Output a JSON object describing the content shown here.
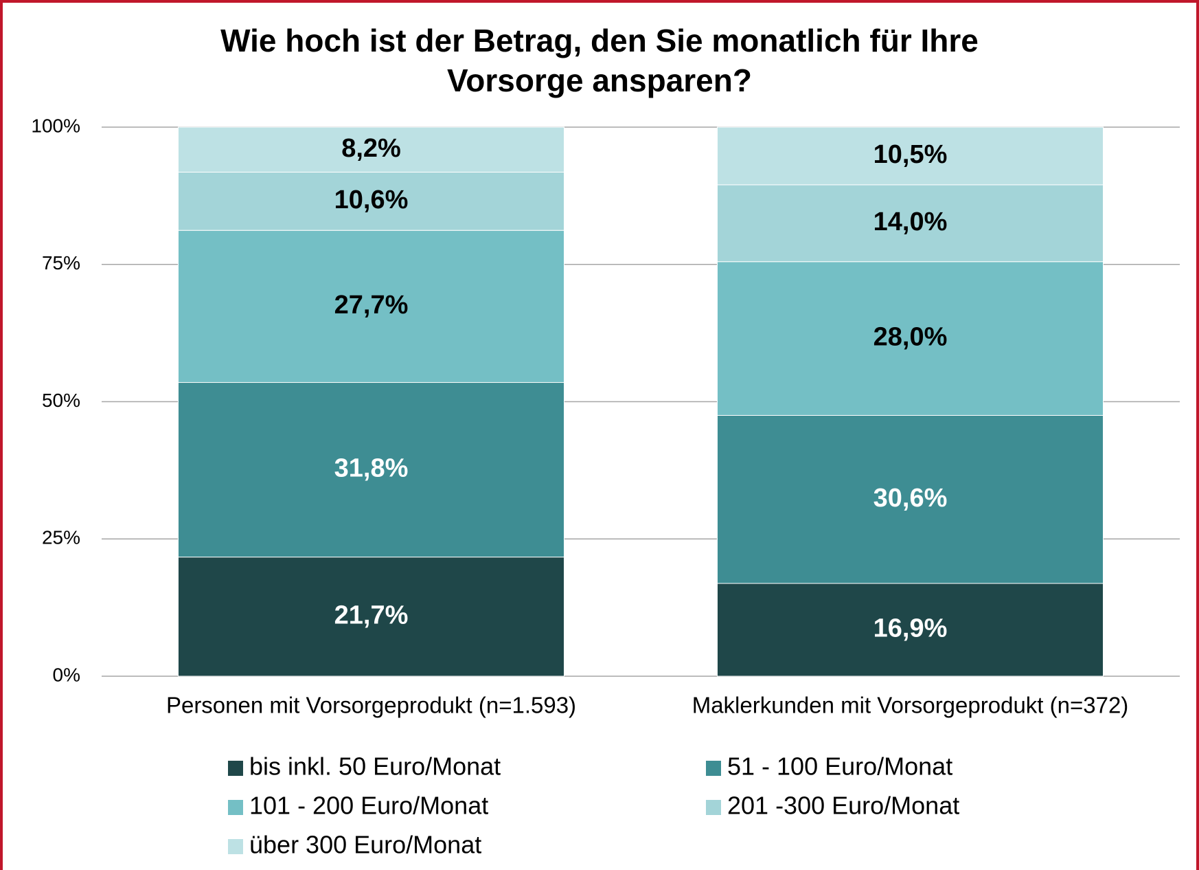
{
  "chart_data": {
    "type": "stacked_bar",
    "title": "Wie hoch ist der Betrag, den Sie monatlich für Ihre Vorsorge ansparen?",
    "categories": [
      "Personen mit Vorsorgeprodukt (n=1.593)",
      "Maklerkunden mit Vorsorgeprodukt (n=372)"
    ],
    "series": [
      {
        "name": "bis inkl. 50 Euro/Monat",
        "color": "#1f4749",
        "label_color": "#ffffff",
        "values": [
          21.7,
          16.9
        ],
        "value_labels": [
          "21,7%",
          "16,9%"
        ]
      },
      {
        "name": "51 - 100 Euro/Monat",
        "color": "#3e8d93",
        "label_color": "#ffffff",
        "values": [
          31.8,
          30.6
        ],
        "value_labels": [
          "31,8%",
          "30,6%"
        ]
      },
      {
        "name": "101 - 200 Euro/Monat",
        "color": "#74bfc5",
        "label_color": "#000000",
        "values": [
          27.7,
          28.0
        ],
        "value_labels": [
          "27,7%",
          "28,0%"
        ]
      },
      {
        "name": "201 -300 Euro/Monat",
        "color": "#a3d4d8",
        "label_color": "#000000",
        "values": [
          10.6,
          14.0
        ],
        "value_labels": [
          "10,6%",
          "14,0%"
        ]
      },
      {
        "name": "über 300 Euro/Monat",
        "color": "#bde1e4",
        "label_color": "#000000",
        "values": [
          8.2,
          10.5
        ],
        "value_labels": [
          "8,2%",
          "10,5%"
        ]
      }
    ],
    "ylim": [
      0,
      100
    ],
    "yticks": [
      {
        "value": 0,
        "label": "0%"
      },
      {
        "value": 25,
        "label": "25%"
      },
      {
        "value": 50,
        "label": "50%"
      },
      {
        "value": 75,
        "label": "75%"
      },
      {
        "value": 100,
        "label": "100%"
      }
    ],
    "grid": true,
    "legend": "bottom"
  }
}
